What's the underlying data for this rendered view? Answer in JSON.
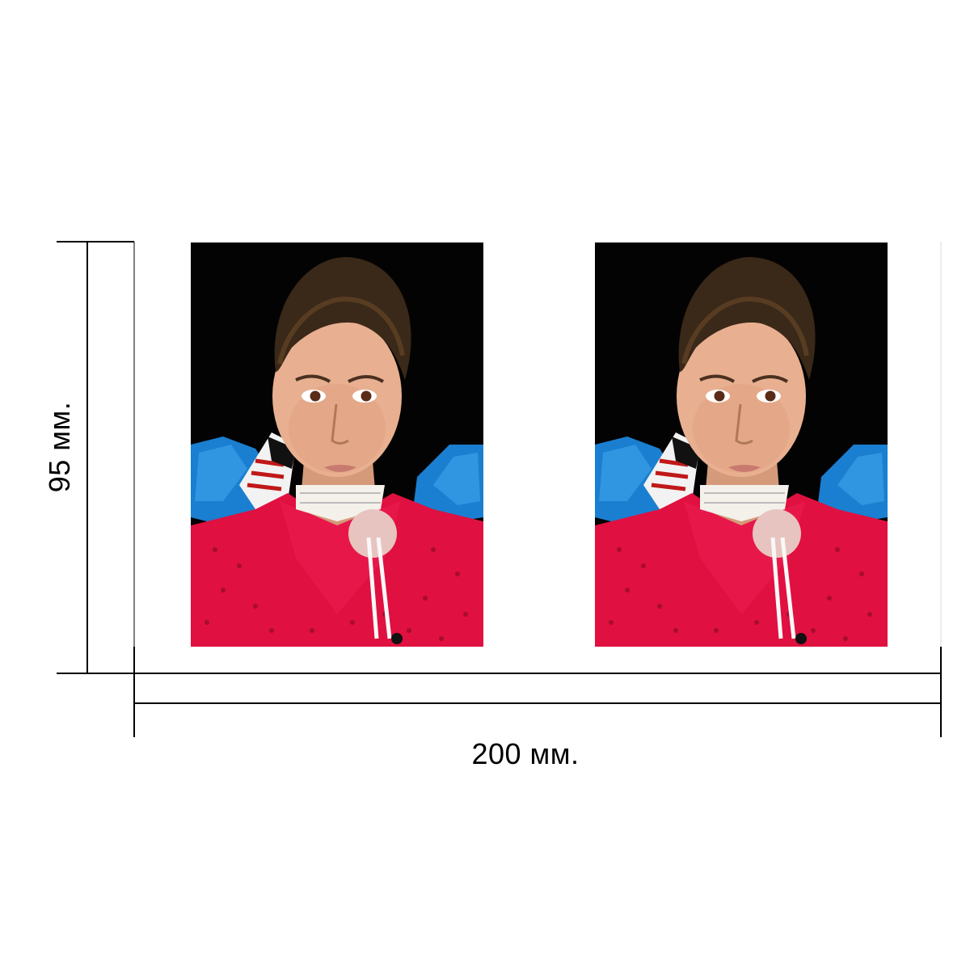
{
  "dimensions": {
    "height_label": "95 мм.",
    "width_label": "200 мм."
  },
  "photos": [
    {
      "label": "passport-photo-1"
    },
    {
      "label": "passport-photo-2"
    }
  ],
  "colors": {
    "background": "#ffffff",
    "line": "#000000",
    "photo_background": "#020202",
    "shirt": "#e01040",
    "feathers": "#1a7fd0",
    "hair": "#3a2818",
    "skin": "#e8b090"
  }
}
